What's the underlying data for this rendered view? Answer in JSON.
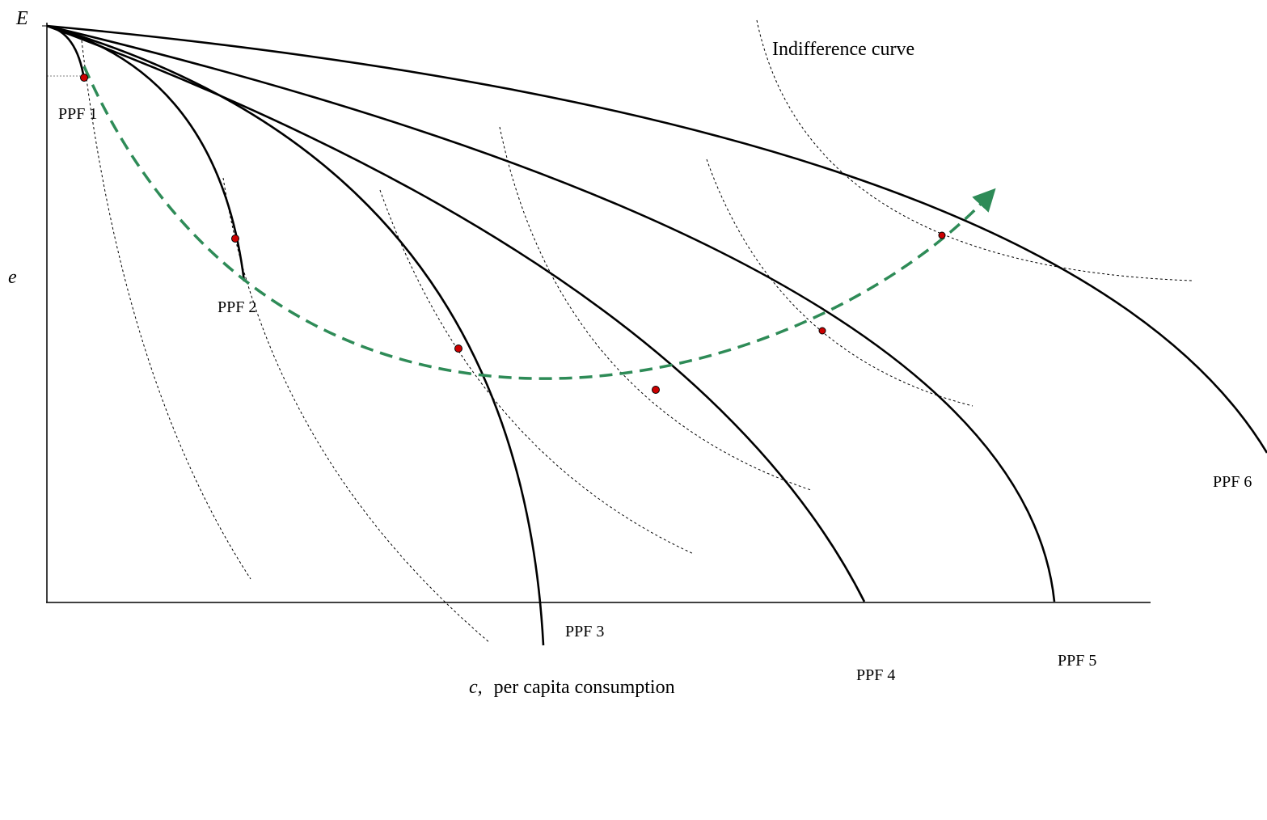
{
  "axes": {
    "y_top_label": "E",
    "y_label": "e",
    "x_label_var": "c,",
    "x_label_text": "per capita consumption"
  },
  "labels": {
    "ppf1": "PPF 1",
    "ppf2": "PPF 2",
    "ppf3": "PPF 3",
    "ppf4": "PPF 4",
    "ppf5": "PPF 5",
    "ppf6": "PPF 6",
    "indifference": "Indifference curve"
  },
  "colors": {
    "ppf": "#000000",
    "indifference": "#000000",
    "expansion_path": "#2e8b57",
    "tangency_point": "#cc0000"
  }
}
